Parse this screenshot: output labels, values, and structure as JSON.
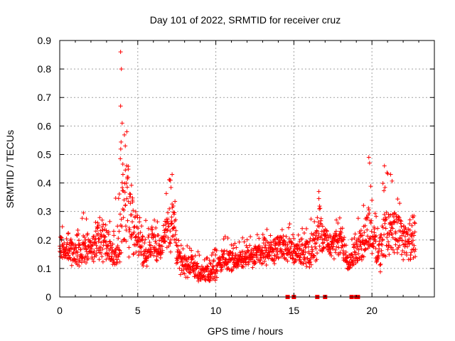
{
  "chart_data": {
    "type": "scatter",
    "title": "Day 101 of 2022, SRMTID for receiver cruz",
    "xlabel": "GPS time / hours",
    "ylabel": "SRMTID / TECUs",
    "xlim": [
      0,
      24
    ],
    "ylim": [
      0,
      0.9
    ],
    "xticks": [
      0,
      5,
      10,
      15,
      20
    ],
    "xtick_labels": [
      "0",
      "5",
      "10",
      "15",
      "20"
    ],
    "yticks": [
      0,
      0.1,
      0.2,
      0.3,
      0.4,
      0.5,
      0.6,
      0.7,
      0.8,
      0.9
    ],
    "ytick_labels": [
      "0",
      "0.1",
      "0.2",
      "0.3",
      "0.4",
      "0.5",
      "0.6",
      "0.7",
      "0.8",
      "0.9"
    ],
    "grid": true,
    "marker": "plus",
    "color": "#ff0000",
    "envelope": {
      "description": "approximate data envelope (hour, low, typical, high)",
      "points": [
        [
          0.0,
          0.12,
          0.18,
          0.25
        ],
        [
          0.5,
          0.12,
          0.17,
          0.24
        ],
        [
          1.0,
          0.1,
          0.15,
          0.22
        ],
        [
          1.5,
          0.1,
          0.16,
          0.3
        ],
        [
          2.0,
          0.11,
          0.17,
          0.28
        ],
        [
          2.5,
          0.12,
          0.2,
          0.3
        ],
        [
          3.0,
          0.12,
          0.2,
          0.3
        ],
        [
          3.5,
          0.09,
          0.14,
          0.32
        ],
        [
          3.8,
          0.1,
          0.18,
          0.45
        ],
        [
          4.0,
          0.12,
          0.3,
          0.62
        ],
        [
          4.3,
          0.15,
          0.35,
          0.58
        ],
        [
          4.6,
          0.12,
          0.28,
          0.45
        ],
        [
          5.0,
          0.12,
          0.2,
          0.3
        ],
        [
          5.5,
          0.1,
          0.16,
          0.29
        ],
        [
          6.0,
          0.12,
          0.2,
          0.28
        ],
        [
          6.5,
          0.12,
          0.17,
          0.27
        ],
        [
          7.0,
          0.14,
          0.25,
          0.44
        ],
        [
          7.3,
          0.15,
          0.26,
          0.4
        ],
        [
          7.6,
          0.08,
          0.13,
          0.2
        ],
        [
          8.0,
          0.06,
          0.11,
          0.18
        ],
        [
          8.5,
          0.06,
          0.11,
          0.18
        ],
        [
          9.0,
          0.05,
          0.08,
          0.15
        ],
        [
          9.5,
          0.04,
          0.08,
          0.14
        ],
        [
          10.0,
          0.06,
          0.1,
          0.18
        ],
        [
          10.5,
          0.08,
          0.13,
          0.22
        ],
        [
          11.0,
          0.09,
          0.13,
          0.21
        ],
        [
          11.5,
          0.09,
          0.13,
          0.22
        ],
        [
          12.0,
          0.1,
          0.14,
          0.22
        ],
        [
          12.5,
          0.1,
          0.14,
          0.22
        ],
        [
          13.0,
          0.1,
          0.16,
          0.24
        ],
        [
          13.5,
          0.11,
          0.16,
          0.24
        ],
        [
          14.0,
          0.11,
          0.17,
          0.25
        ],
        [
          14.5,
          0.12,
          0.18,
          0.28
        ],
        [
          15.0,
          0.1,
          0.15,
          0.25
        ],
        [
          15.5,
          0.1,
          0.15,
          0.24
        ],
        [
          16.0,
          0.1,
          0.16,
          0.26
        ],
        [
          16.5,
          0.13,
          0.22,
          0.37
        ],
        [
          17.0,
          0.14,
          0.2,
          0.29
        ],
        [
          17.5,
          0.13,
          0.18,
          0.27
        ],
        [
          18.0,
          0.14,
          0.2,
          0.28
        ],
        [
          18.5,
          0.08,
          0.12,
          0.2
        ],
        [
          19.0,
          0.1,
          0.16,
          0.26
        ],
        [
          19.5,
          0.12,
          0.2,
          0.35
        ],
        [
          19.8,
          0.14,
          0.25,
          0.5
        ],
        [
          20.2,
          0.1,
          0.18,
          0.3
        ],
        [
          20.5,
          0.08,
          0.16,
          0.28
        ],
        [
          20.8,
          0.1,
          0.22,
          0.47
        ],
        [
          21.2,
          0.12,
          0.22,
          0.44
        ],
        [
          21.5,
          0.12,
          0.24,
          0.38
        ],
        [
          22.0,
          0.12,
          0.2,
          0.3
        ],
        [
          22.5,
          0.1,
          0.18,
          0.28
        ],
        [
          22.8,
          0.1,
          0.22,
          0.3
        ]
      ]
    },
    "zero_markers_x": [
      14.6,
      15.0,
      16.5,
      17.0,
      18.7,
      19.0,
      19.1
    ]
  }
}
